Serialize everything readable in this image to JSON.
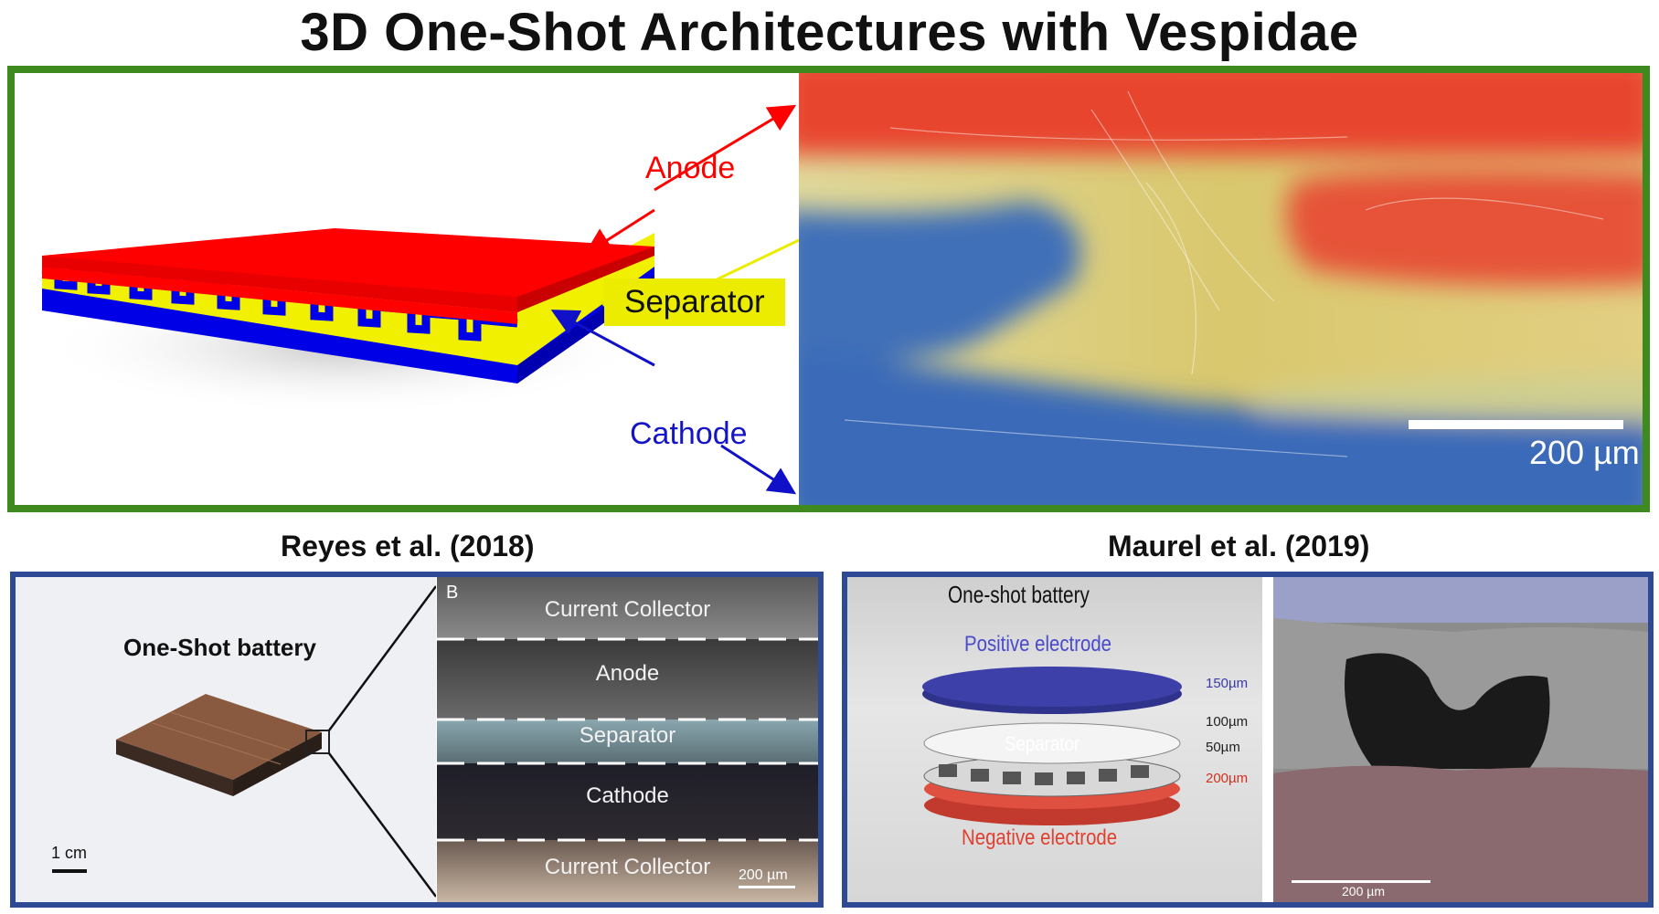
{
  "title": "3D One-Shot Architectures with Vespidae",
  "top": {
    "anode_label": "Anode",
    "separator_label": "Separator",
    "cathode_label": "Cathode",
    "scale_bar": "200 µm",
    "colors": {
      "anode": "#ff0000",
      "separator": "#f0f000",
      "cathode": "#0000e6",
      "panel_border": "#3f8a1f"
    }
  },
  "left_panel": {
    "heading": "Reyes et al. (2018)",
    "battery_label": "One-Shot battery",
    "scale": "1 cm",
    "inset_letter": "B",
    "layers": [
      "Current Collector",
      "Anode",
      "Separator",
      "Cathode",
      "Current Collector"
    ],
    "inset_scale": "200 µm"
  },
  "right_panel": {
    "heading": "Maurel et al. (2019)",
    "battery_label": "One-shot battery",
    "positive": "Positive electrode",
    "separator": "Separator",
    "negative": "Negative electrode",
    "dims": [
      "150µm",
      "100µm",
      "50µm",
      "200µm"
    ],
    "sem_scale": "200 µm"
  }
}
